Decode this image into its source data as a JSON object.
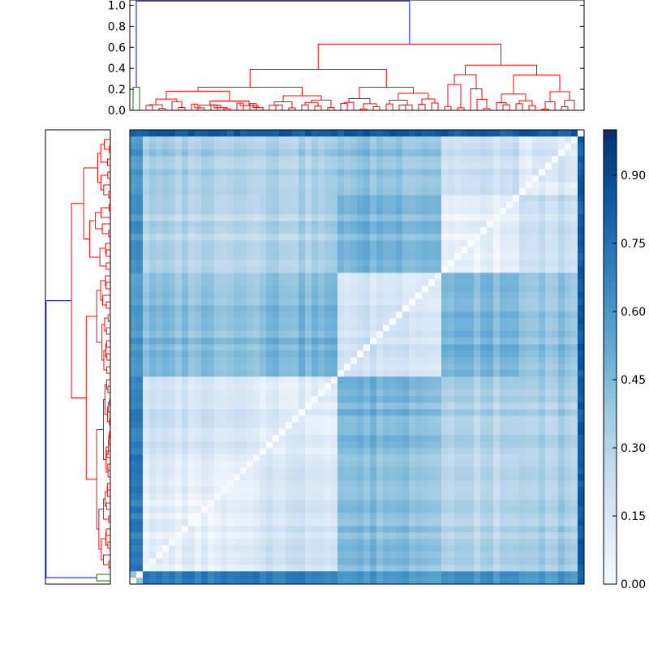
{
  "chart_data": [
    {
      "type": "dendrogram",
      "orientation": "top",
      "ylim": [
        0,
        1.05
      ],
      "yticks": [
        0.0,
        0.2,
        0.4,
        0.6,
        0.8,
        1.0
      ],
      "ytick_labels": [
        "0.0",
        "0.2",
        "0.4",
        "0.6",
        "0.8",
        "1.0"
      ],
      "link_colors": {
        "root": "#0000ff",
        "cluster_a": "#ff0000",
        "cluster_b": "#008000"
      },
      "root_height": 1.04,
      "cluster_heights": [
        0.63,
        0.39,
        0.43,
        0.22
      ]
    },
    {
      "type": "dendrogram",
      "orientation": "left",
      "link_colors": {
        "root": "#0000ff",
        "cluster_a": "#ff0000",
        "cluster_b": "#008000"
      }
    },
    {
      "type": "heatmap",
      "size": 70,
      "colormap": "Blues",
      "vmin": 0,
      "vmax": 1.0,
      "colorbar": {
        "ticks": [
          0.0,
          0.15,
          0.3,
          0.45,
          0.6,
          0.75,
          0.9
        ],
        "tick_labels": [
          "0.00",
          "0.15",
          "0.30",
          "0.45",
          "0.60",
          "0.75",
          "0.90"
        ]
      }
    }
  ]
}
